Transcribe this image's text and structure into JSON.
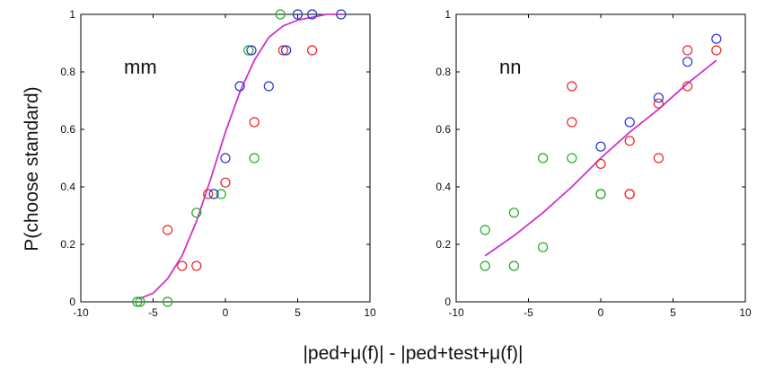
{
  "figure": {
    "ylabel": "P(choose standard)",
    "xlabel": "|ped+μ(f)| - |ped+test+μ(f)|"
  },
  "colors": {
    "green": "#22aa22",
    "red": "#ee2222",
    "blue": "#2233cc",
    "fit": "#cc33cc"
  },
  "chart_data": [
    {
      "type": "scatter",
      "panel_label": "mm",
      "xlim": [
        -10,
        10
      ],
      "ylim": [
        0,
        1
      ],
      "xticks": [
        "-10",
        "-5",
        "0",
        "5",
        "10"
      ],
      "yticks": [
        "0",
        "0.2",
        "0.4",
        "0.6",
        "0.8",
        "1"
      ],
      "series": [
        {
          "color": "green",
          "points": [
            [
              -6.1,
              0
            ],
            [
              -5.9,
              0
            ],
            [
              -4,
              0
            ],
            [
              -2,
              0.31
            ],
            [
              -0.3,
              0.375
            ],
            [
              2,
              0.5
            ],
            [
              1.6,
              0.875
            ],
            [
              3.8,
              1
            ]
          ]
        },
        {
          "color": "red",
          "points": [
            [
              -4,
              0.25
            ],
            [
              -3,
              0.125
            ],
            [
              -2,
              0.125
            ],
            [
              -1.2,
              0.375
            ],
            [
              0,
              0.415
            ],
            [
              2,
              0.625
            ],
            [
              4,
              0.875
            ],
            [
              6,
              0.875
            ]
          ]
        },
        {
          "color": "blue",
          "points": [
            [
              -0.8,
              0.375
            ],
            [
              0,
              0.5
            ],
            [
              1,
              0.75
            ],
            [
              1.8,
              0.875
            ],
            [
              3,
              0.75
            ],
            [
              4.2,
              0.875
            ],
            [
              5,
              1
            ],
            [
              6,
              1
            ],
            [
              8,
              1
            ]
          ]
        }
      ],
      "fit": {
        "x": [
          -6,
          -5,
          -4,
          -3,
          -2,
          -1,
          0,
          1,
          2,
          3,
          4,
          5,
          6,
          7,
          8
        ],
        "y": [
          0.01,
          0.03,
          0.08,
          0.16,
          0.28,
          0.43,
          0.59,
          0.73,
          0.84,
          0.92,
          0.96,
          0.98,
          0.99,
          1.0,
          1.0
        ]
      }
    },
    {
      "type": "scatter",
      "panel_label": "nn",
      "xlim": [
        -10,
        10
      ],
      "ylim": [
        0,
        1
      ],
      "xticks": [
        "-10",
        "-5",
        "0",
        "5",
        "10"
      ],
      "yticks": [
        "0",
        "0.2",
        "0.4",
        "0.6",
        "0.8",
        "1"
      ],
      "series": [
        {
          "color": "green",
          "points": [
            [
              -8,
              0.125
            ],
            [
              -8,
              0.25
            ],
            [
              -6,
              0.125
            ],
            [
              -6,
              0.31
            ],
            [
              -4,
              0.19
            ],
            [
              -4,
              0.5
            ],
            [
              -2,
              0.5
            ],
            [
              0,
              0.375
            ],
            [
              0,
              0.375
            ]
          ]
        },
        {
          "color": "red",
          "points": [
            [
              -2,
              0.75
            ],
            [
              -2,
              0.625
            ],
            [
              0,
              0.48
            ],
            [
              2,
              0.56
            ],
            [
              2,
              0.375
            ],
            [
              2,
              0.375
            ],
            [
              4,
              0.5
            ],
            [
              4,
              0.69
            ],
            [
              6,
              0.75
            ],
            [
              6,
              0.875
            ],
            [
              8,
              0.875
            ]
          ]
        },
        {
          "color": "blue",
          "points": [
            [
              0,
              0.54
            ],
            [
              2,
              0.625
            ],
            [
              4,
              0.71
            ],
            [
              6,
              0.835
            ],
            [
              8,
              0.915
            ]
          ]
        }
      ],
      "fit": {
        "x": [
          -8,
          -6,
          -4,
          -2,
          0,
          2,
          4,
          6,
          8
        ],
        "y": [
          0.16,
          0.23,
          0.31,
          0.4,
          0.5,
          0.59,
          0.67,
          0.76,
          0.84
        ]
      }
    }
  ]
}
